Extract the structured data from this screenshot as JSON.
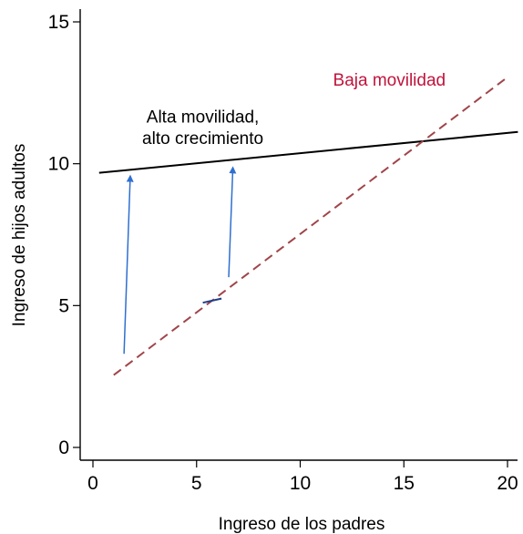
{
  "chart_data": {
    "type": "line",
    "xlabel": "Ingreso de los padres",
    "ylabel": "Ingreso de hijos adultos",
    "xlim": [
      0,
      20
    ],
    "ylim": [
      0,
      15
    ],
    "xticks": [
      0,
      5,
      10,
      15,
      20
    ],
    "yticks": [
      0,
      5,
      10,
      15
    ],
    "grid": false,
    "series": [
      {
        "key": "alta",
        "color": "#000000",
        "style": "solid",
        "points": [
          [
            0.3,
            9.68
          ],
          [
            20.5,
            11.12
          ]
        ]
      },
      {
        "key": "baja",
        "color": "#a0454a",
        "style": "dashed",
        "points": [
          [
            1.0,
            2.55
          ],
          [
            20.0,
            13.05
          ]
        ]
      },
      {
        "key": "partial",
        "color": "#1f3d8a",
        "style": "solid",
        "points": [
          [
            5.3,
            5.1
          ],
          [
            6.2,
            5.25
          ]
        ]
      }
    ],
    "arrows": [
      {
        "color": "#2f6fd0",
        "from": [
          1.5,
          3.3
        ],
        "to": [
          1.8,
          9.55
        ]
      },
      {
        "color": "#2f6fd0",
        "from": [
          6.55,
          6.0
        ],
        "to": [
          6.75,
          9.85
        ]
      }
    ],
    "annotations": [
      {
        "text": "Alta movilidad,",
        "x": 5.3,
        "y": 11.45,
        "color": "#000000"
      },
      {
        "text": "alto crecimiento",
        "x": 5.3,
        "y": 10.7,
        "color": "#000000"
      },
      {
        "text": "Baja movilidad",
        "x": 14.3,
        "y": 12.75,
        "color": "#c0143c"
      }
    ]
  }
}
